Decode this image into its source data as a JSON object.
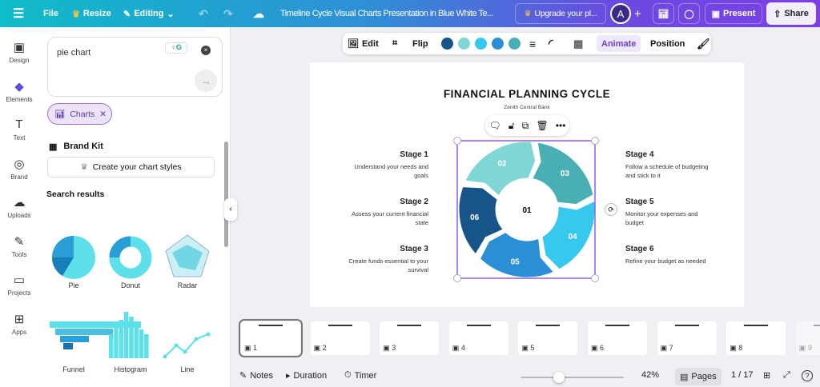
{
  "topbar": {
    "file": "File",
    "resize": "Resize",
    "editing": "Editing",
    "title": "Timeline Cycle Visual Charts Presentation in Blue White Te...",
    "upgrade": "Upgrade your pl...",
    "avatar": "A",
    "present": "Present",
    "share": "Share"
  },
  "rail": [
    {
      "label": "Design",
      "icon": "▣"
    },
    {
      "label": "Elements",
      "icon": "◆"
    },
    {
      "label": "Text",
      "icon": "T"
    },
    {
      "label": "Brand",
      "icon": "◎"
    },
    {
      "label": "Uploads",
      "icon": "☁"
    },
    {
      "label": "Tools",
      "icon": "✎"
    },
    {
      "label": "Projects",
      "icon": "▭"
    },
    {
      "label": "Apps",
      "icon": "⊞"
    }
  ],
  "panel": {
    "search_value": "pie chart",
    "filter_chip": "Charts",
    "brand_kit": "Brand Kit",
    "create_styles": "Create your chart styles",
    "search_results": "Search results",
    "results": [
      {
        "label": "Pie"
      },
      {
        "label": "Donut"
      },
      {
        "label": "Radar"
      },
      {
        "label": "Funnel"
      },
      {
        "label": "Histogram"
      },
      {
        "label": "Line"
      }
    ]
  },
  "context_toolbar": {
    "edit": "Edit",
    "flip": "Flip",
    "animate": "Animate",
    "position": "Position",
    "colors": [
      "#16548a",
      "#7fd6d4",
      "#37c8ee",
      "#2b8fd6",
      "#4aafb4"
    ]
  },
  "slide": {
    "title": "FINANCIAL PLANNING CYCLE",
    "subtitle": "Zenith Central Bank",
    "stages_left": [
      {
        "title": "Stage 1",
        "desc": "Understand your needs and goals"
      },
      {
        "title": "Stage 2",
        "desc": "Assess your current financial state"
      },
      {
        "title": "Stage 3",
        "desc": "Create funds essential to your survival"
      }
    ],
    "stages_right": [
      {
        "title": "Stage 4",
        "desc": "Follow a schedule of budgeting and stick to it"
      },
      {
        "title": "Stage 5",
        "desc": "Monitor your expenses and budget"
      },
      {
        "title": "Stage 6",
        "desc": "Refine your budget as needed"
      }
    ],
    "center_label": "01",
    "segments": [
      {
        "label": "02",
        "color": "#7fd6d4"
      },
      {
        "label": "03",
        "color": "#4aafb4"
      },
      {
        "label": "04",
        "color": "#37c8ee"
      },
      {
        "label": "05",
        "color": "#2b8fd6"
      },
      {
        "label": "06",
        "color": "#16548a"
      }
    ]
  },
  "thumbnails": [
    "1",
    "2",
    "3",
    "4",
    "5",
    "6",
    "7",
    "8",
    "9"
  ],
  "bottom": {
    "notes": "Notes",
    "duration": "Duration",
    "timer": "Timer",
    "zoom": "42%",
    "zoom_level": 42,
    "pages": "Pages",
    "page_count": "1 / 17"
  }
}
